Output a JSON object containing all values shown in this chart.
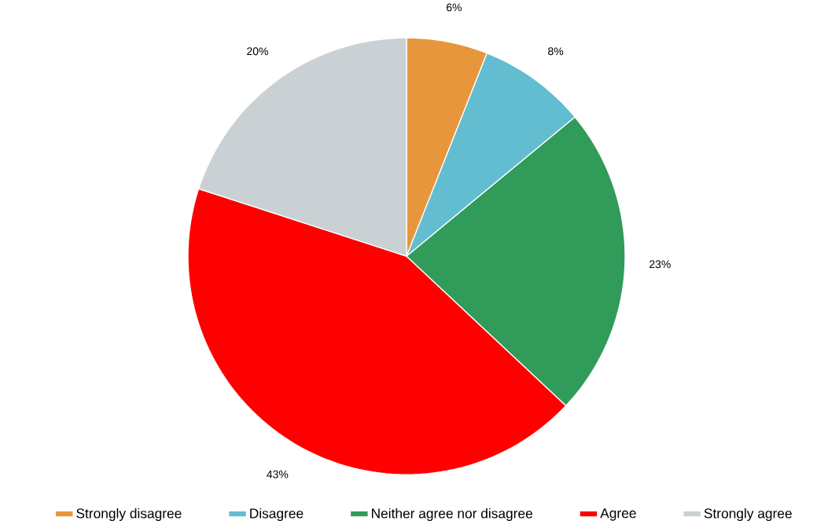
{
  "chart_data": {
    "type": "pie",
    "categories": [
      "Strongly disagree",
      "Disagree",
      "Neither agree nor disagree",
      "Agree",
      "Strongly agree"
    ],
    "values": [
      6,
      8,
      23,
      43,
      20
    ],
    "value_labels": [
      "6%",
      "8%",
      "23%",
      "43%",
      "20%"
    ],
    "colors": [
      "#e8963c",
      "#62bdd0",
      "#319b5a",
      "#ff0000",
      "#cad1d5"
    ],
    "legend": "bottom"
  }
}
